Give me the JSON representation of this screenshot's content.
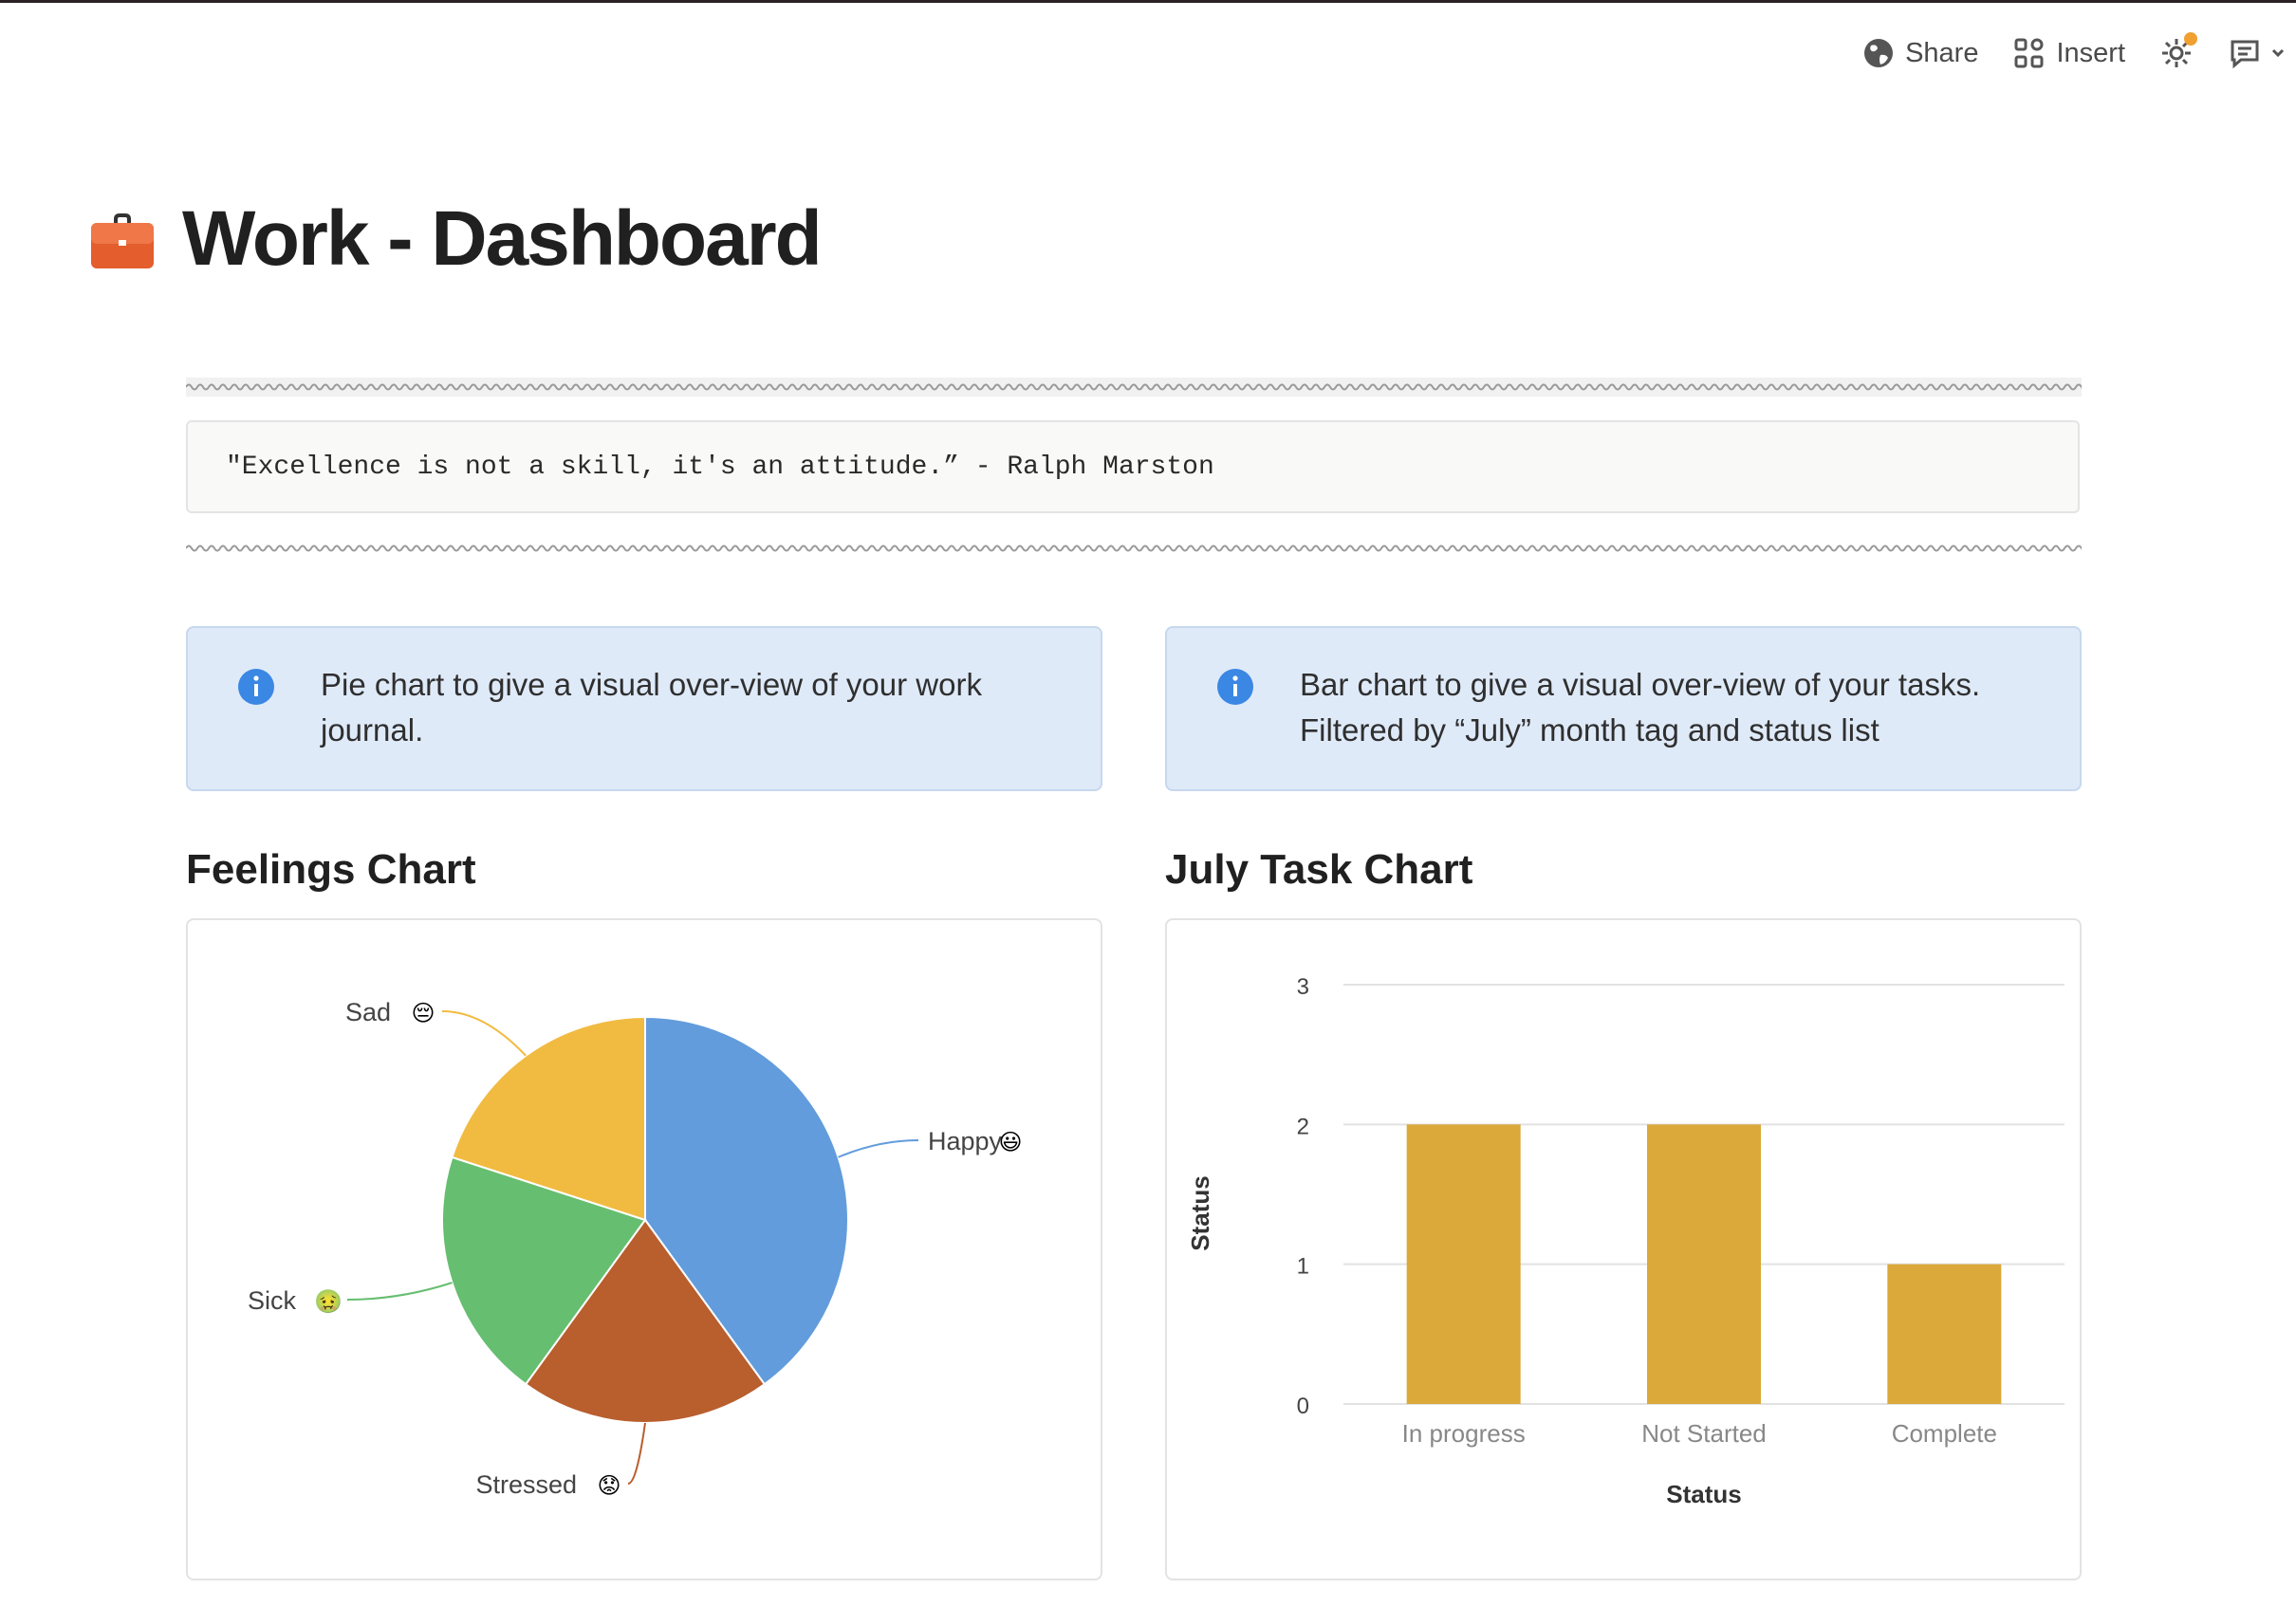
{
  "topbar": {
    "share_label": "Share",
    "insert_label": "Insert",
    "icons": [
      "globe-icon",
      "grid-icon",
      "gear-icon",
      "comment-icon",
      "chevron-down-icon"
    ],
    "notification_dot_color": "#f0a030"
  },
  "page": {
    "title": "Work - Dashboard",
    "icon": "briefcase-icon"
  },
  "quote": {
    "text": "\"Excellence is not a skill, it's an attitude.” - Ralph Marston"
  },
  "callouts": [
    {
      "text_line1": "Pie chart to give a visual over-view of your work",
      "text_line2": "journal.",
      "icon": "info-icon"
    },
    {
      "text_line1": "Bar chart to give a visual over-view of your tasks.",
      "text_line2": "Filtered by “July” month tag and status list",
      "icon": "info-icon"
    }
  ],
  "sections": {
    "feelings_title": "Feelings Chart",
    "tasks_title": "July Task Chart"
  },
  "chart_data": [
    {
      "type": "pie",
      "title": "Feelings Chart",
      "slices": [
        {
          "label": "Happy",
          "emoji": "😃",
          "value": 2,
          "color": "#629cdc"
        },
        {
          "label": "Stressed",
          "emoji": "😟",
          "value": 1,
          "color": "#b95e2d"
        },
        {
          "label": "Sick",
          "emoji": "🤢",
          "value": 1,
          "color": "#66be70"
        },
        {
          "label": "Sad",
          "emoji": "😔",
          "value": 1,
          "color": "#f1bb41"
        }
      ]
    },
    {
      "type": "bar",
      "title": "July Task Chart",
      "categories": [
        "In progress",
        "Not Started",
        "Complete"
      ],
      "values": [
        2,
        2,
        1
      ],
      "xlabel": "Status",
      "ylabel": "Status",
      "ylim": [
        0,
        3
      ],
      "yticks": [
        0,
        1,
        2,
        3
      ],
      "bar_color": "#dba83a",
      "grid": true
    }
  ]
}
